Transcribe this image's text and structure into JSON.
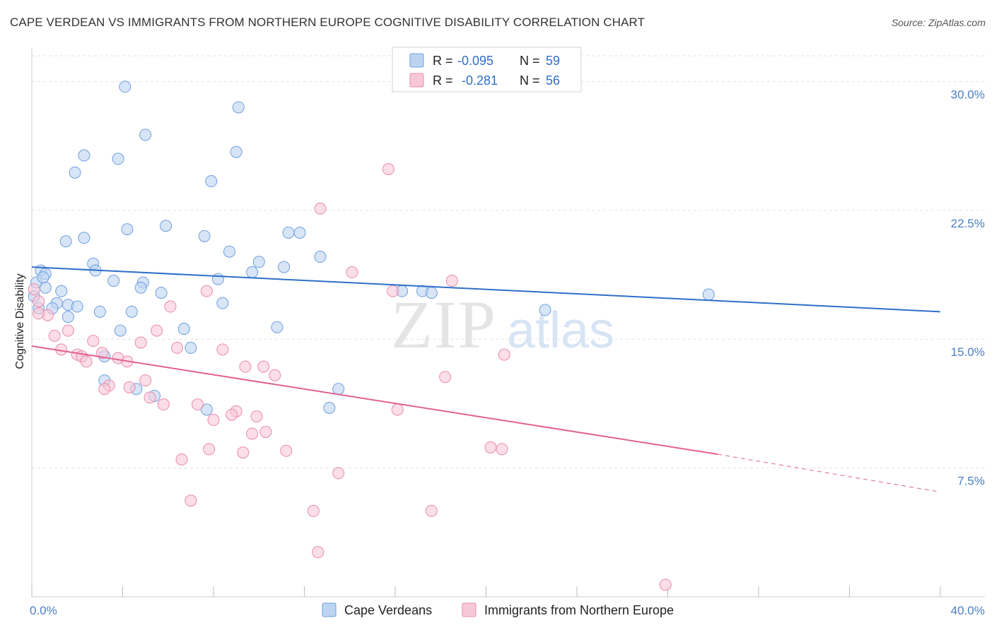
{
  "title": "CAPE VERDEAN VS IMMIGRANTS FROM NORTHERN EUROPE COGNITIVE DISABILITY CORRELATION CHART",
  "source": "Source: ZipAtlas.com",
  "watermark": {
    "zip": "ZIP",
    "atlas": "atlas"
  },
  "legend": {
    "r_label": "R =",
    "n_label": "N =",
    "items": [
      {
        "r": "-0.095",
        "n": "59"
      },
      {
        "r": "-0.281",
        "n": "56"
      }
    ]
  },
  "chart_data": {
    "type": "scatter",
    "title": "CAPE VERDEAN VS IMMIGRANTS FROM NORTHERN EUROPE COGNITIVE DISABILITY CORRELATION CHART",
    "xlabel": "",
    "ylabel": "Cognitive Disability",
    "xlim": [
      0,
      40
    ],
    "ylim": [
      0,
      31.5
    ],
    "x_tick_labels": [
      "0.0%",
      "40.0%"
    ],
    "y_ticks": [
      7.5,
      15.0,
      22.5,
      30.0
    ],
    "y_tick_labels": [
      "7.5%",
      "15.0%",
      "22.5%",
      "30.0%"
    ],
    "grid": "horizontal dashed",
    "legend_position": "top-center",
    "series": [
      {
        "name": "Cape Verdeans",
        "color": "#6f9fdc",
        "fill": "#bcd4f2",
        "trend": {
          "x": [
            0,
            40
          ],
          "y": [
            19.2,
            16.6
          ]
        },
        "points": [
          [
            4.1,
            29.7
          ],
          [
            9.1,
            28.5
          ],
          [
            5.0,
            26.9
          ],
          [
            9.0,
            25.9
          ],
          [
            2.3,
            25.7
          ],
          [
            3.8,
            25.5
          ],
          [
            1.9,
            24.7
          ],
          [
            7.9,
            24.2
          ],
          [
            4.2,
            21.4
          ],
          [
            5.9,
            21.6
          ],
          [
            7.6,
            21.0
          ],
          [
            11.3,
            21.2
          ],
          [
            11.8,
            21.2
          ],
          [
            1.5,
            20.7
          ],
          [
            2.3,
            20.9
          ],
          [
            8.7,
            20.1
          ],
          [
            12.7,
            19.8
          ],
          [
            2.7,
            19.4
          ],
          [
            10.0,
            19.5
          ],
          [
            0.4,
            19.0
          ],
          [
            0.6,
            18.8
          ],
          [
            2.8,
            19.0
          ],
          [
            9.7,
            18.9
          ],
          [
            11.1,
            19.2
          ],
          [
            3.6,
            18.4
          ],
          [
            4.9,
            18.3
          ],
          [
            8.2,
            18.5
          ],
          [
            4.8,
            18.0
          ],
          [
            0.6,
            18.0
          ],
          [
            1.3,
            17.8
          ],
          [
            5.7,
            17.7
          ],
          [
            16.3,
            17.8
          ],
          [
            17.2,
            17.8
          ],
          [
            17.6,
            17.7
          ],
          [
            29.8,
            17.6
          ],
          [
            1.1,
            17.1
          ],
          [
            8.4,
            17.1
          ],
          [
            1.6,
            17.0
          ],
          [
            0.9,
            16.8
          ],
          [
            2.0,
            16.9
          ],
          [
            3.0,
            16.6
          ],
          [
            4.4,
            16.6
          ],
          [
            22.6,
            16.7
          ],
          [
            1.6,
            16.3
          ],
          [
            0.3,
            16.8
          ],
          [
            0.1,
            17.5
          ],
          [
            3.9,
            15.5
          ],
          [
            6.7,
            15.6
          ],
          [
            10.8,
            15.7
          ],
          [
            7.0,
            14.5
          ],
          [
            3.2,
            14.0
          ],
          [
            3.2,
            12.6
          ],
          [
            4.6,
            12.1
          ],
          [
            5.4,
            11.7
          ],
          [
            7.7,
            10.9
          ],
          [
            13.5,
            12.1
          ],
          [
            13.1,
            11.0
          ],
          [
            0.2,
            18.3
          ],
          [
            0.5,
            18.6
          ]
        ]
      },
      {
        "name": "Immigrants from Northern Europe",
        "color": "#e98aab",
        "fill": "#f8c8d8",
        "trend": {
          "x": [
            0,
            30.2
          ],
          "y": [
            14.6,
            8.3
          ]
        },
        "trend_dashed": {
          "x": [
            30.2,
            40
          ],
          "y": [
            8.3,
            6.1
          ]
        },
        "points": [
          [
            15.7,
            24.9
          ],
          [
            12.7,
            22.6
          ],
          [
            14.1,
            18.9
          ],
          [
            18.5,
            18.4
          ],
          [
            15.9,
            17.8
          ],
          [
            7.7,
            17.8
          ],
          [
            0.1,
            17.9
          ],
          [
            0.3,
            17.2
          ],
          [
            6.1,
            16.9
          ],
          [
            0.7,
            16.4
          ],
          [
            1.6,
            15.5
          ],
          [
            5.5,
            15.5
          ],
          [
            1.0,
            15.2
          ],
          [
            2.7,
            14.9
          ],
          [
            4.8,
            14.8
          ],
          [
            6.4,
            14.5
          ],
          [
            8.4,
            14.4
          ],
          [
            1.3,
            14.4
          ],
          [
            3.1,
            14.2
          ],
          [
            2.0,
            14.1
          ],
          [
            2.2,
            14.0
          ],
          [
            3.8,
            13.9
          ],
          [
            4.2,
            13.7
          ],
          [
            2.4,
            13.7
          ],
          [
            9.4,
            13.4
          ],
          [
            10.2,
            13.4
          ],
          [
            20.8,
            14.1
          ],
          [
            10.7,
            12.9
          ],
          [
            18.2,
            12.8
          ],
          [
            5.0,
            12.6
          ],
          [
            3.4,
            12.3
          ],
          [
            3.2,
            12.1
          ],
          [
            4.3,
            12.2
          ],
          [
            5.2,
            11.6
          ],
          [
            5.8,
            11.2
          ],
          [
            7.3,
            11.2
          ],
          [
            9.0,
            10.8
          ],
          [
            8.8,
            10.6
          ],
          [
            16.1,
            10.9
          ],
          [
            9.9,
            10.5
          ],
          [
            8.0,
            10.3
          ],
          [
            10.3,
            9.6
          ],
          [
            9.7,
            9.5
          ],
          [
            20.2,
            8.7
          ],
          [
            20.7,
            8.6
          ],
          [
            7.8,
            8.6
          ],
          [
            11.2,
            8.5
          ],
          [
            9.3,
            8.4
          ],
          [
            6.6,
            8.0
          ],
          [
            13.5,
            7.2
          ],
          [
            7.0,
            5.6
          ],
          [
            12.4,
            5.0
          ],
          [
            17.6,
            5.0
          ],
          [
            12.6,
            2.6
          ],
          [
            27.9,
            0.7
          ],
          [
            0.3,
            16.5
          ]
        ]
      }
    ]
  }
}
